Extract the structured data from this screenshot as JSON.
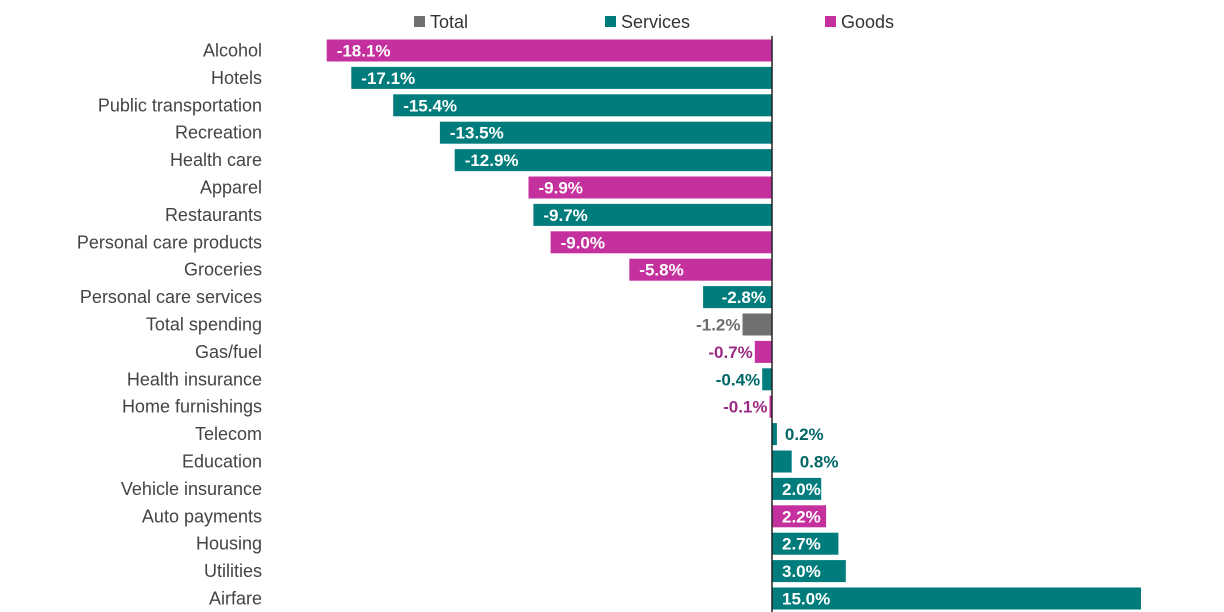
{
  "chart_data": {
    "type": "bar",
    "orientation": "horizontal",
    "legend": {
      "placement": "top",
      "items": [
        {
          "name": "Total",
          "color": "#707070"
        },
        {
          "name": "Services",
          "color": "#007c7c"
        },
        {
          "name": "Goods",
          "color": "#c4309e"
        }
      ]
    },
    "xlim": [
      -18.5,
      15.2
    ],
    "grid": false,
    "data": [
      {
        "label": "Alcohol",
        "value": -18.1,
        "display": "-18.1%",
        "group": "Goods"
      },
      {
        "label": "Hotels",
        "value": -17.1,
        "display": "-17.1%",
        "group": "Services"
      },
      {
        "label": "Public transportation",
        "value": -15.4,
        "display": "-15.4%",
        "group": "Services"
      },
      {
        "label": "Recreation",
        "value": -13.5,
        "display": "-13.5%",
        "group": "Services"
      },
      {
        "label": "Health care",
        "value": -12.9,
        "display": "-12.9%",
        "group": "Services"
      },
      {
        "label": "Apparel",
        "value": -9.9,
        "display": "-9.9%",
        "group": "Goods"
      },
      {
        "label": "Restaurants",
        "value": -9.7,
        "display": "-9.7%",
        "group": "Services"
      },
      {
        "label": "Personal care products",
        "value": -9.0,
        "display": "-9.0%",
        "group": "Goods"
      },
      {
        "label": "Groceries",
        "value": -5.8,
        "display": "-5.8%",
        "group": "Goods"
      },
      {
        "label": "Personal care services",
        "value": -2.8,
        "display": "-2.8%",
        "group": "Services"
      },
      {
        "label": "Total spending",
        "value": -1.2,
        "display": "-1.2%",
        "group": "Total"
      },
      {
        "label": "Gas/fuel",
        "value": -0.7,
        "display": "-0.7%",
        "group": "Goods"
      },
      {
        "label": "Health insurance",
        "value": -0.4,
        "display": "-0.4%",
        "group": "Services"
      },
      {
        "label": "Home furnishings",
        "value": -0.1,
        "display": "-0.1%",
        "group": "Goods"
      },
      {
        "label": "Telecom",
        "value": 0.2,
        "display": "0.2%",
        "group": "Services"
      },
      {
        "label": "Education",
        "value": 0.8,
        "display": "0.8%",
        "group": "Services"
      },
      {
        "label": "Vehicle insurance",
        "value": 2.0,
        "display": "2.0%",
        "group": "Services"
      },
      {
        "label": "Auto payments",
        "value": 2.2,
        "display": "2.2%",
        "group": "Goods"
      },
      {
        "label": "Housing",
        "value": 2.7,
        "display": "2.7%",
        "group": "Services"
      },
      {
        "label": "Utilities",
        "value": 3.0,
        "display": "3.0%",
        "group": "Services"
      },
      {
        "label": "Airfare",
        "value": 15.0,
        "display": "15.0%",
        "group": "Services"
      }
    ]
  }
}
